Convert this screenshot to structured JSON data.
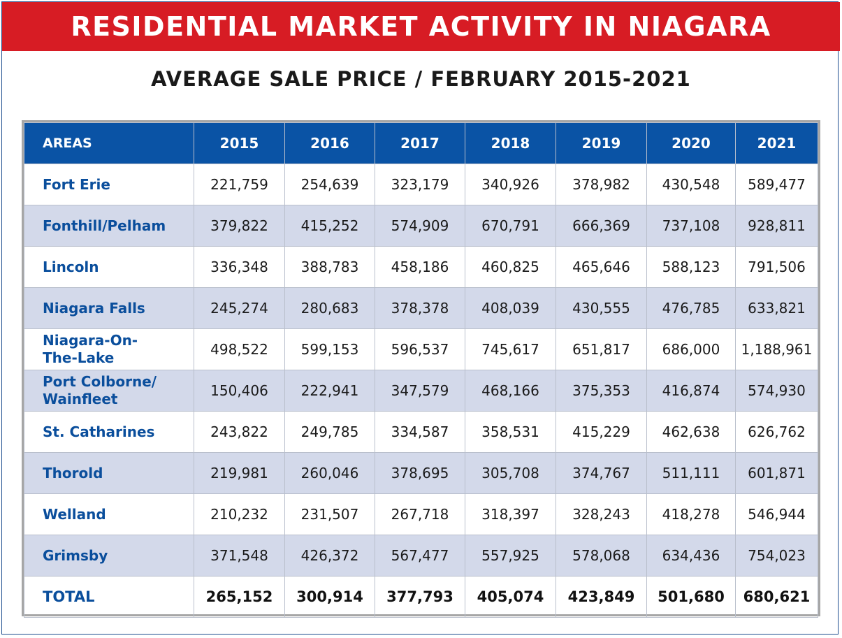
{
  "title": "RESIDENTIAL MARKET ACTIVITY IN NIAGARA",
  "subtitle": "AVERAGE SALE PRICE / FEBRUARY 2015-2021",
  "colors": {
    "banner": "#d71c24",
    "header": "#0a53a5",
    "shade": "#d3d9ea",
    "area_text": "#0a4e9c"
  },
  "table": {
    "headers": [
      "AREAS",
      "2015",
      "2016",
      "2017",
      "2018",
      "2019",
      "2020",
      "2021"
    ],
    "rows": [
      {
        "area": "Fort Erie",
        "values": [
          "221,759",
          "254,639",
          "323,179",
          "340,926",
          "378,982",
          "430,548",
          "589,477"
        ]
      },
      {
        "area": "Fonthill/Pelham",
        "values": [
          "379,822",
          "415,252",
          "574,909",
          "670,791",
          "666,369",
          "737,108",
          "928,811"
        ]
      },
      {
        "area": "Lincoln",
        "values": [
          "336,348",
          "388,783",
          "458,186",
          "460,825",
          "465,646",
          "588,123",
          "791,506"
        ]
      },
      {
        "area": "Niagara Falls",
        "values": [
          "245,274",
          "280,683",
          "378,378",
          "408,039",
          "430,555",
          "476,785",
          "633,821"
        ]
      },
      {
        "area": "Niagara-On-\nThe-Lake",
        "values": [
          "498,522",
          "599,153",
          "596,537",
          "745,617",
          "651,817",
          "686,000",
          "1,188,961"
        ]
      },
      {
        "area": "Port Colborne/\nWainfleet",
        "values": [
          "150,406",
          "222,941",
          "347,579",
          "468,166",
          "375,353",
          "416,874",
          "574,930"
        ]
      },
      {
        "area": "St. Catharines",
        "values": [
          "243,822",
          "249,785",
          "334,587",
          "358,531",
          "415,229",
          "462,638",
          "626,762"
        ]
      },
      {
        "area": "Thorold",
        "values": [
          "219,981",
          "260,046",
          "378,695",
          "305,708",
          "374,767",
          "511,111",
          "601,871"
        ]
      },
      {
        "area": "Welland",
        "values": [
          "210,232",
          "231,507",
          "267,718",
          "318,397",
          "328,243",
          "418,278",
          "546,944"
        ]
      },
      {
        "area": "Grimsby",
        "values": [
          "371,548",
          "426,372",
          "567,477",
          "557,925",
          "578,068",
          "634,436",
          "754,023"
        ]
      },
      {
        "area": "TOTAL",
        "values": [
          "265,152",
          "300,914",
          "377,793",
          "405,074",
          "423,849",
          "501,680",
          "680,621"
        ]
      }
    ]
  }
}
